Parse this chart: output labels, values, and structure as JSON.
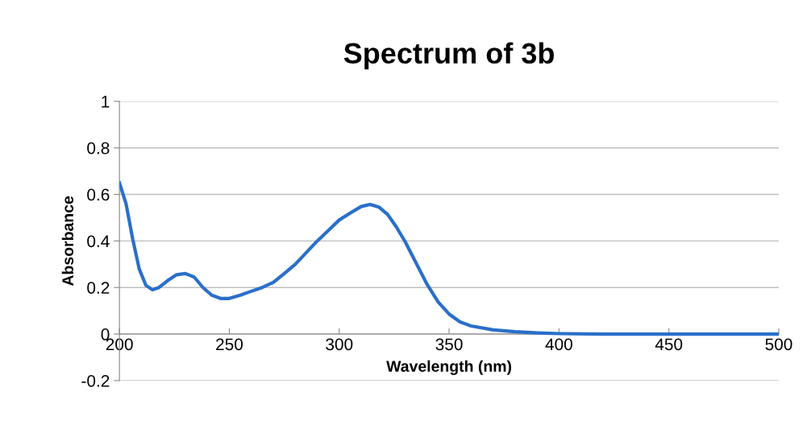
{
  "chart_data": {
    "type": "line",
    "title": "Spectrum of 3b",
    "xlabel": "Wavelength (nm)",
    "ylabel": "Absorbance",
    "xlim": [
      200,
      500
    ],
    "xticks": [
      200,
      250,
      300,
      350,
      400,
      450,
      500
    ],
    "ylim": [
      -0.2,
      1
    ],
    "yticks": [
      -0.2,
      0,
      0.2,
      0.4,
      0.6,
      0.8,
      1
    ],
    "grid": "y",
    "marker": "none",
    "line_style": "solid",
    "series": [
      {
        "color": "#2a6fca",
        "x": [
          200,
          203,
          206,
          209,
          212,
          215,
          218,
          222,
          226,
          230,
          234,
          238,
          242,
          246,
          250,
          255,
          260,
          265,
          270,
          275,
          280,
          285,
          290,
          295,
          300,
          305,
          310,
          314,
          318,
          322,
          326,
          330,
          335,
          340,
          345,
          350,
          355,
          360,
          370,
          380,
          390,
          400,
          420,
          500
        ],
        "values": [
          0.65,
          0.56,
          0.41,
          0.28,
          0.21,
          0.19,
          0.2,
          0.23,
          0.255,
          0.26,
          0.245,
          0.2,
          0.167,
          0.153,
          0.153,
          0.167,
          0.184,
          0.2,
          0.222,
          0.26,
          0.3,
          0.35,
          0.4,
          0.445,
          0.49,
          0.52,
          0.548,
          0.557,
          0.546,
          0.514,
          0.46,
          0.397,
          0.305,
          0.213,
          0.138,
          0.086,
          0.052,
          0.035,
          0.018,
          0.01,
          0.005,
          0.002,
          0,
          0
        ]
      }
    ]
  }
}
